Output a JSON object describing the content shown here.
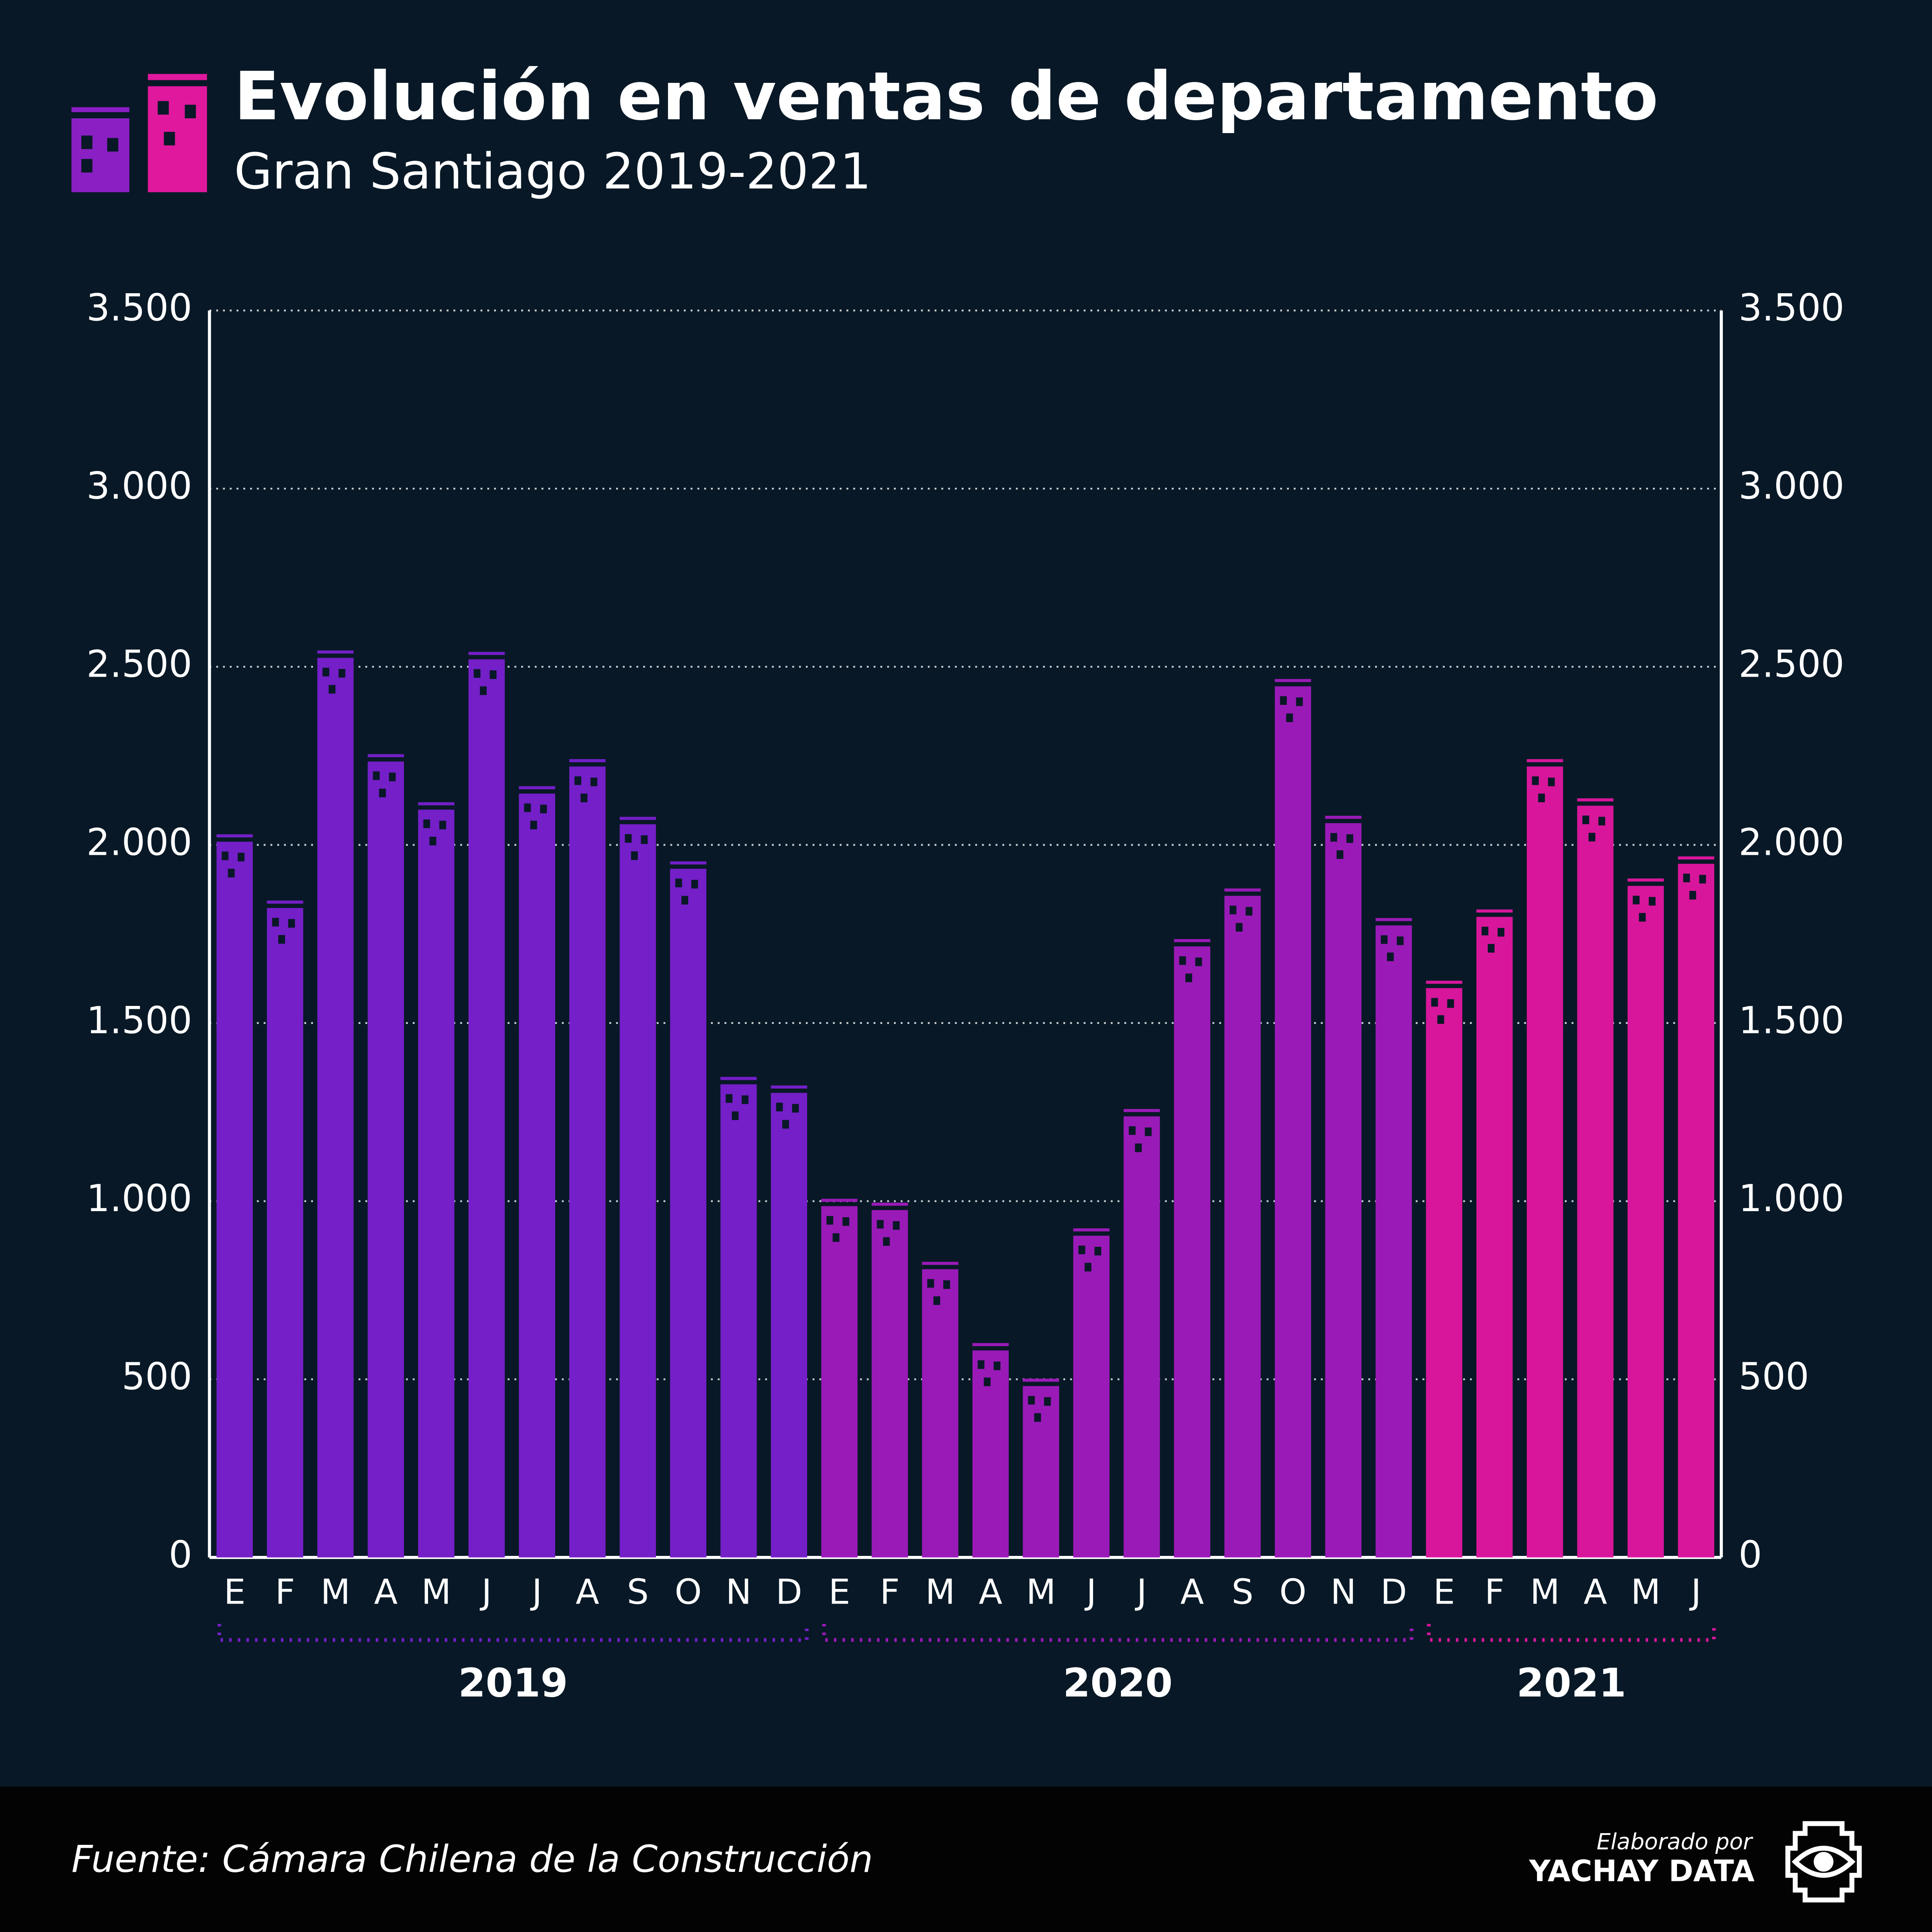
{
  "chart_data": {
    "type": "bar",
    "title": "Evolución en ventas de departamento",
    "subtitle": "Gran Santiago 2019-2021",
    "source": "Fuente: Cámara Chilena de la Construcción",
    "credit": {
      "line1": "Elaborado por",
      "line2": "YACHAY DATA"
    },
    "series": [
      {
        "name": "2019",
        "color": "#741fc8",
        "categories": [
          "E",
          "F",
          "M",
          "A",
          "M",
          "J",
          "J",
          "A",
          "S",
          "O",
          "N",
          "D"
        ],
        "values": [
          2009,
          1823,
          2525,
          2234,
          2099,
          2521,
          2144,
          2220,
          2058,
          1933,
          1328,
          1304
        ]
      },
      {
        "name": "2020",
        "color": "#9a1ab8",
        "categories": [
          "E",
          "F",
          "M",
          "A",
          "M",
          "J",
          "J",
          "A",
          "S",
          "O",
          "N",
          "D"
        ],
        "values": [
          986,
          975,
          809,
          581,
          481,
          903,
          1238,
          1715,
          1857,
          2445,
          2061,
          1774
        ]
      },
      {
        "name": "2021",
        "color": "#d8169c",
        "categories": [
          "E",
          "F",
          "M",
          "A",
          "M",
          "J"
        ],
        "values": [
          1598,
          1798,
          2220,
          2110,
          1885,
          1947
        ]
      }
    ],
    "ylim": [
      0,
      3500
    ],
    "yticks": [
      0,
      500,
      {
        "value": 1000,
        "label": "1.000"
      },
      {
        "value": 1500,
        "label": "1.500"
      },
      {
        "value": 2000,
        "label": "2.000"
      },
      {
        "value": 2500,
        "label": "2.500"
      },
      {
        "value": 3000,
        "label": "3.000"
      },
      {
        "value": 3500,
        "label": "3.500"
      }
    ],
    "y2lim": [
      0,
      3500
    ],
    "y2ticks": [
      0,
      500,
      {
        "value": 1000,
        "label": "1.000"
      },
      {
        "value": 1500,
        "label": "1.500"
      },
      {
        "value": 2000,
        "label": "2.000"
      },
      {
        "value": 2500,
        "label": "2.500"
      },
      {
        "value": 3000,
        "label": "3.000"
      },
      {
        "value": 3500,
        "label": "3.500"
      }
    ],
    "grid": true
  }
}
